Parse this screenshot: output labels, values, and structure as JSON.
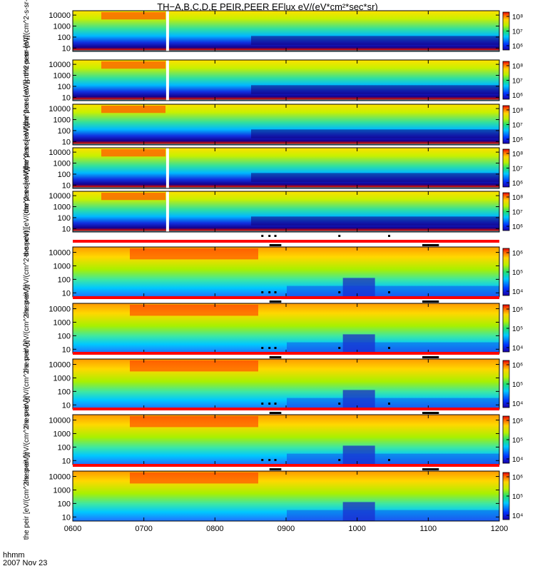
{
  "title": "TH−A,B,C,D,E PEIR,PEER EFlux eV/(eV*cm²*sec*sr)",
  "footer": {
    "hhmm": "hhmm",
    "date": "2007 Nov 23"
  },
  "colors": {
    "gap_bar": "#ff0000",
    "marker": "#000000"
  },
  "chart_data": {
    "type": "heatmap",
    "x_ticks": [
      "0600",
      "0700",
      "0800",
      "0900",
      "1000",
      "1100",
      "1200"
    ],
    "x_range": [
      "06:00",
      "12:00"
    ],
    "y_scale": "log",
    "y_ticks": [
      "10",
      "100",
      "1000",
      "10000"
    ],
    "panels": [
      {
        "species": "electron",
        "ylabel": "the peer [eV/(cm^2-s-sr-eV)]",
        "color_ticks": [
          "10⁸",
          "10⁷",
          "10⁶"
        ],
        "data_gap_at": "07:20"
      },
      {
        "species": "electron",
        "ylabel": "the peer [eV/(cm^2-s-sr-eV)]",
        "color_ticks": [
          "10⁸",
          "10⁷",
          "10⁶"
        ],
        "data_gap_at": "07:20"
      },
      {
        "species": "electron",
        "ylabel": "the peer [eV/(cm^2-s-sr-eV)]",
        "color_ticks": [
          "10⁸",
          "10⁷",
          "10⁶"
        ],
        "data_gap_at": ""
      },
      {
        "species": "electron",
        "ylabel": "the peer [eV/(cm^2-s-sr-eV)]",
        "color_ticks": [
          "10⁸",
          "10⁷",
          "10⁶"
        ],
        "data_gap_at": "07:20"
      },
      {
        "species": "electron",
        "ylabel": "the peer [eV/(cm^2-s-sr-eV)]",
        "color_ticks": [
          "10⁸",
          "10⁷",
          "10⁶"
        ],
        "data_gap_at": "07:20"
      },
      {
        "species": "ion",
        "ylabel": "the peir [eV/(cm^2-s-sr-eV)]",
        "color_ticks": [
          "10⁶",
          "10⁵",
          "10⁴"
        ],
        "data_gap_at": ""
      },
      {
        "species": "ion",
        "ylabel": "the peir [eV/(cm^2-s-sr-eV)]",
        "color_ticks": [
          "10⁶",
          "10⁵",
          "10⁴"
        ],
        "data_gap_at": ""
      },
      {
        "species": "ion",
        "ylabel": "the peir [eV/(cm^2-s-sr-eV)]",
        "color_ticks": [
          "10⁶",
          "10⁵",
          "10⁴"
        ],
        "data_gap_at": ""
      },
      {
        "species": "ion",
        "ylabel": "the peir [eV/(cm^2-s-sr-eV)]",
        "color_ticks": [
          "10⁶",
          "10⁵",
          "10⁴"
        ],
        "data_gap_at": ""
      },
      {
        "species": "ion",
        "ylabel": "the peir [eV/(cm^2-s-sr-eV)]",
        "color_ticks": [
          "10⁶",
          "10⁵",
          "10⁴"
        ],
        "data_gap_at": ""
      }
    ],
    "time_markers": [
      "08:40",
      "08:46",
      "08:51",
      "09:45",
      "10:27"
    ],
    "time_bars": [
      [
        "08:46",
        "08:56"
      ],
      [
        "10:55",
        "11:09"
      ]
    ]
  }
}
